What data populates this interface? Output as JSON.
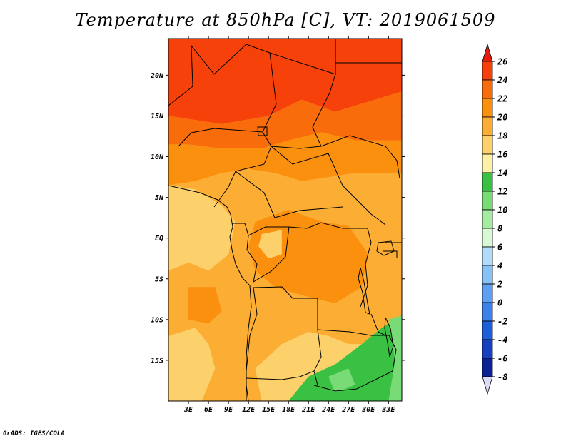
{
  "title": "Temperature at 850hPa [C], VT: 2019061509",
  "credit": "GrADS: IGES/COLA",
  "map": {
    "lon_range": [
      0,
      35
    ],
    "lat_range": [
      -20,
      24.5
    ],
    "lat_labels": [
      "20N",
      "15N",
      "10N",
      "5N",
      "EQ",
      "5S",
      "10S",
      "15S"
    ],
    "lat_values": [
      20,
      15,
      10,
      5,
      0,
      -5,
      -10,
      -15
    ],
    "lon_labels": [
      "3E",
      "6E",
      "9E",
      "12E",
      "15E",
      "18E",
      "21E",
      "24E",
      "27E",
      "30E",
      "33E"
    ],
    "lon_values": [
      3,
      6,
      9,
      12,
      15,
      18,
      21,
      24,
      27,
      30,
      33
    ],
    "regions": [
      {
        "level": 24,
        "points": [
          [
            0,
            24.5
          ],
          [
            35,
            24.5
          ],
          [
            35,
            18
          ],
          [
            31,
            17
          ],
          [
            25,
            15.5
          ],
          [
            20,
            17
          ],
          [
            15,
            15
          ],
          [
            8,
            14
          ],
          [
            0,
            15
          ]
        ]
      },
      {
        "level": 22,
        "points": [
          [
            0,
            15
          ],
          [
            8,
            14
          ],
          [
            15,
            15
          ],
          [
            20,
            17
          ],
          [
            25,
            15.5
          ],
          [
            31,
            17
          ],
          [
            35,
            18
          ],
          [
            35,
            12
          ],
          [
            28,
            12
          ],
          [
            23,
            13
          ],
          [
            18,
            12
          ],
          [
            14,
            11
          ],
          [
            8,
            11
          ],
          [
            3,
            11.5
          ],
          [
            0,
            11.5
          ]
        ]
      },
      {
        "level": 20,
        "points": [
          [
            0,
            11.5
          ],
          [
            3,
            11.5
          ],
          [
            8,
            11
          ],
          [
            14,
            11
          ],
          [
            18,
            12
          ],
          [
            23,
            13
          ],
          [
            28,
            12
          ],
          [
            35,
            12
          ],
          [
            35,
            8
          ],
          [
            28,
            8
          ],
          [
            24,
            7.5
          ],
          [
            20,
            7
          ],
          [
            16,
            8
          ],
          [
            12,
            8.5
          ],
          [
            8,
            8
          ],
          [
            4,
            7
          ],
          [
            0,
            6.5
          ]
        ]
      },
      {
        "level": 18,
        "points": [
          [
            0,
            6.5
          ],
          [
            4,
            7
          ],
          [
            8,
            8
          ],
          [
            12,
            8.5
          ],
          [
            16,
            8
          ],
          [
            20,
            7
          ],
          [
            24,
            7.5
          ],
          [
            28,
            8
          ],
          [
            35,
            8
          ],
          [
            35,
            -11
          ],
          [
            31,
            -10
          ],
          [
            28,
            -11
          ],
          [
            25,
            -13
          ],
          [
            22,
            -12
          ],
          [
            18,
            -13
          ],
          [
            14,
            -14
          ],
          [
            11,
            -12
          ],
          [
            9,
            -7
          ],
          [
            6,
            -4
          ],
          [
            3,
            -3
          ],
          [
            0,
            -4
          ]
        ]
      },
      {
        "level": 20,
        "points": [
          [
            13,
            2
          ],
          [
            18,
            3.5
          ],
          [
            23,
            2
          ],
          [
            27,
            1.5
          ],
          [
            30,
            -2
          ],
          [
            29,
            -6
          ],
          [
            25,
            -8
          ],
          [
            20,
            -7
          ],
          [
            16,
            -6
          ],
          [
            13,
            -4
          ],
          [
            12,
            -1
          ]
        ]
      },
      {
        "level": 20,
        "points": [
          [
            3,
            -6
          ],
          [
            7,
            -6
          ],
          [
            8,
            -9
          ],
          [
            6,
            -10.5
          ],
          [
            3,
            -10
          ]
        ]
      },
      {
        "level": 16,
        "points": [
          [
            0,
            6.5
          ],
          [
            4,
            6
          ],
          [
            8,
            4
          ],
          [
            10,
            2
          ],
          [
            9,
            -2
          ],
          [
            6,
            -4
          ],
          [
            3,
            -3
          ],
          [
            0,
            -4
          ]
        ]
      },
      {
        "level": 16,
        "points": [
          [
            14,
            0.5
          ],
          [
            17,
            1
          ],
          [
            17,
            -2
          ],
          [
            15,
            -2.5
          ],
          [
            13.5,
            -1
          ]
        ]
      },
      {
        "level": 16,
        "points": [
          [
            17,
            -13
          ],
          [
            21,
            -11.5
          ],
          [
            24,
            -12
          ],
          [
            27,
            -13
          ],
          [
            30,
            -13
          ],
          [
            27,
            -16
          ],
          [
            22,
            -17
          ],
          [
            18,
            -20
          ],
          [
            14,
            -20
          ],
          [
            13,
            -16
          ]
        ]
      },
      {
        "level": 16,
        "points": [
          [
            0,
            -12
          ],
          [
            4,
            -11
          ],
          [
            6,
            -13
          ],
          [
            7,
            -16
          ],
          [
            5,
            -20
          ],
          [
            0,
            -20
          ]
        ]
      },
      {
        "level": 12,
        "points": [
          [
            18,
            -20
          ],
          [
            21,
            -17
          ],
          [
            25,
            -15.5
          ],
          [
            29,
            -13
          ],
          [
            32,
            -11
          ],
          [
            35,
            -9.5
          ],
          [
            35,
            -20
          ]
        ]
      },
      {
        "level": 10,
        "points": [
          [
            33,
            -10
          ],
          [
            35,
            -9.5
          ],
          [
            35,
            -20
          ],
          [
            33,
            -20
          ],
          [
            34,
            -15
          ]
        ]
      },
      {
        "level": 10,
        "points": [
          [
            24,
            -17
          ],
          [
            27,
            -16
          ],
          [
            28,
            -18
          ],
          [
            25,
            -19
          ]
        ]
      }
    ]
  },
  "colorbar": {
    "labels": [
      "26",
      "24",
      "22",
      "20",
      "18",
      "16",
      "14",
      "12",
      "10",
      "8",
      "6",
      "4",
      "2",
      "0",
      "-2",
      "-4",
      "-6",
      "-8"
    ],
    "colors_top_to_bottom": [
      "#e81a0c",
      "#f6420a",
      "#f96c0c",
      "#fb900f",
      "#fbad34",
      "#fcd16c",
      "#fdf0a7",
      "#3ac143",
      "#78db76",
      "#a6eca0",
      "#d8f9d6",
      "#b0dcfa",
      "#87c1f6",
      "#5d9ff3",
      "#3a81ea",
      "#1d5fd8",
      "#1540c0",
      "#0b2292",
      "#0a0c6a"
    ],
    "lower_arrow_color": "#dcdcfa"
  }
}
